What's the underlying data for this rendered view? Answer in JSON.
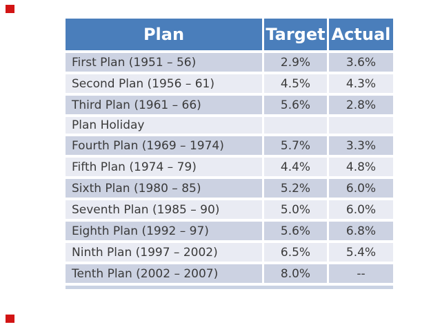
{
  "page": {
    "background": "#FFFFFF"
  },
  "markers": {
    "color": "#D21414",
    "positions": [
      "top-left",
      "bottom-left"
    ]
  },
  "table": {
    "columns": [
      {
        "key": "plan",
        "label": "Plan"
      },
      {
        "key": "target",
        "label": "Target"
      },
      {
        "key": "actual",
        "label": "Actual"
      }
    ],
    "rows": [
      {
        "plan": "First Plan (1951 – 56)",
        "target": "2.9%",
        "actual": "3.6%",
        "compact": false
      },
      {
        "plan": "Second Plan (1956 – 61)",
        "target": "4.5%",
        "actual": "4.3%",
        "compact": false
      },
      {
        "plan": "Third Plan (1961 – 66)",
        "target": "5.6%",
        "actual": "2.8%",
        "compact": false
      },
      {
        "plan": "Plan Holiday",
        "target": "",
        "actual": "",
        "compact": true
      },
      {
        "plan": "Fourth Plan (1969 – 1974)",
        "target": "5.7%",
        "actual": "3.3%",
        "compact": false
      },
      {
        "plan": "Fifth Plan (1974 – 79)",
        "target": "4.4%",
        "actual": "4.8%",
        "compact": false
      },
      {
        "plan": "Sixth Plan (1980 – 85)",
        "target": "5.2%",
        "actual": "6.0%",
        "compact": false
      },
      {
        "plan": "Seventh Plan (1985 – 90)",
        "target": "5.0%",
        "actual": "6.0%",
        "compact": false
      },
      {
        "plan": "Eighth Plan (1992 – 97)",
        "target": "5.6%",
        "actual": "6.8%",
        "compact": false
      },
      {
        "plan": "Ninth Plan (1997 – 2002)",
        "target": "6.5%",
        "actual": "5.4%",
        "compact": false
      },
      {
        "plan": "Tenth Plan (2002 – 2007)",
        "target": "8.0%",
        "actual": "--",
        "compact": false
      }
    ],
    "colors": {
      "header_bg": "#4A7EBB",
      "header_text": "#FFFFFF",
      "band_dark": "#CCD2E2",
      "band_light": "#E9EBF3",
      "body_text": "#3A3A3A",
      "separator": "#FFFFFF",
      "bottom_strip": "#C9D2E3"
    }
  }
}
